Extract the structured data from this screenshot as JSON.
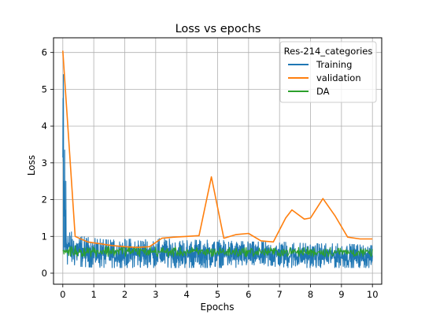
{
  "chart_data": {
    "type": "line",
    "title": "Loss vs epochs",
    "xlabel": "Epochs",
    "ylabel": "Loss",
    "xlim": [
      -0.3,
      10.3
    ],
    "ylim": [
      -0.3,
      6.4
    ],
    "xticks": [
      0,
      1,
      2,
      3,
      4,
      5,
      6,
      7,
      8,
      9,
      10
    ],
    "yticks": [
      0,
      1,
      2,
      3,
      4,
      5,
      6
    ],
    "grid": true,
    "legend": {
      "title": "Res-214_categories",
      "placement": "top-right",
      "entries": [
        "Training",
        "validation",
        "DA"
      ]
    },
    "series": [
      {
        "name": "Training",
        "color": "#1f77b4",
        "style": "noisy",
        "envelope": {
          "x": [
            0,
            0.02,
            0.05,
            0.08,
            0.12,
            0.2,
            0.35,
            0.6,
            1,
            1.5,
            2,
            3,
            4,
            5,
            6,
            7,
            8,
            9,
            10
          ],
          "high": [
            5.4,
            4.2,
            3.35,
            2.0,
            1.5,
            1.2,
            1.05,
            1.0,
            0.95,
            0.9,
            0.92,
            0.95,
            0.9,
            0.9,
            0.85,
            0.85,
            0.8,
            0.8,
            0.75
          ],
          "low": [
            0.4,
            0.35,
            0.3,
            0.28,
            0.25,
            0.22,
            0.2,
            0.18,
            0.16,
            0.15,
            0.15,
            0.15,
            0.15,
            0.15,
            0.15,
            0.15,
            0.15,
            0.15,
            0.15
          ]
        },
        "spikes": [
          [
            0.02,
            5.4
          ],
          [
            0.06,
            3.35
          ],
          [
            0.1,
            2.5
          ]
        ]
      },
      {
        "name": "validation",
        "color": "#ff7f0e",
        "style": "line",
        "x": [
          0,
          0.4,
          0.8,
          1.2,
          1.6,
          2.0,
          2.4,
          2.8,
          3.2,
          3.6,
          4.0,
          4.4,
          4.8,
          5.2,
          5.6,
          6.0,
          6.4,
          6.8,
          7.2,
          7.4,
          7.8,
          8.0,
          8.4,
          8.8,
          9.2,
          9.6,
          10.0
        ],
        "y": [
          6.05,
          1.0,
          0.85,
          0.8,
          0.75,
          0.72,
          0.7,
          0.72,
          0.95,
          0.98,
          1.0,
          1.02,
          2.62,
          0.95,
          1.05,
          1.08,
          0.88,
          0.85,
          1.5,
          1.72,
          1.47,
          1.5,
          2.03,
          1.55,
          0.98,
          0.93,
          0.93
        ]
      },
      {
        "name": "DA",
        "color": "#2ca02c",
        "style": "noisy",
        "envelope": {
          "x": [
            0,
            1,
            2,
            3,
            4,
            5,
            6,
            7,
            8,
            9,
            10
          ],
          "high": [
            0.75,
            0.75,
            0.75,
            0.72,
            0.7,
            0.7,
            0.7,
            0.7,
            0.7,
            0.7,
            0.65
          ],
          "low": [
            0.45,
            0.45,
            0.45,
            0.45,
            0.45,
            0.45,
            0.45,
            0.45,
            0.45,
            0.45,
            0.45
          ]
        }
      }
    ]
  }
}
